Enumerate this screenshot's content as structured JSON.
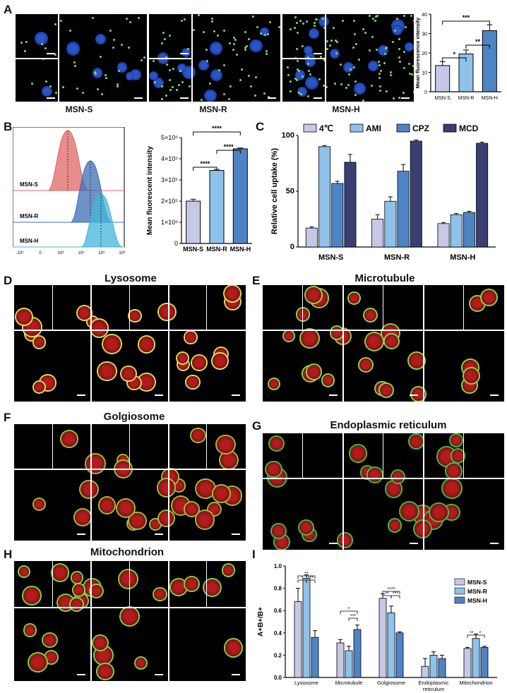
{
  "labels": {
    "A": "A",
    "B": "B",
    "C": "C",
    "D": "D",
    "E": "E",
    "F": "F",
    "G": "G",
    "H": "H",
    "I": "I"
  },
  "panelA": {
    "captions": [
      "MSN-S",
      "MSN-R",
      "MSN-H"
    ],
    "chart": {
      "type": "bar",
      "ylabel": "Mean fluorescence intensity",
      "categories": [
        "MSN-S",
        "MSN-R",
        "MSN-H"
      ],
      "values": [
        13.5,
        19.5,
        31.5
      ],
      "errors": [
        2,
        2,
        3
      ],
      "ylim": [
        0,
        40
      ],
      "yticks": [
        "0",
        "10",
        "20",
        "30",
        "40"
      ],
      "colors": [
        "#c6c8e6",
        "#8fc2ea",
        "#4f84c4"
      ],
      "significance": [
        "*",
        "**",
        "***"
      ]
    }
  },
  "panelB": {
    "histogram": {
      "labels": [
        "MSN-S",
        "MSN-R",
        "MSN-H"
      ],
      "xticks": [
        "-10³",
        "0",
        "10³",
        "10⁴",
        "10⁵",
        "10⁶"
      ],
      "colors": [
        "#e06666",
        "#3c6fb3",
        "#43b6d9"
      ]
    },
    "chart": {
      "type": "bar",
      "ylabel": "Mean fluorescent intensity",
      "categories": [
        "MSN-S",
        "MSN-R",
        "MSN-H"
      ],
      "values": [
        200000,
        345000,
        447000
      ],
      "errors": [
        9000,
        5000,
        4000
      ],
      "ylim": [
        0,
        500000
      ],
      "yticks": [
        "0",
        "1×10⁵",
        "2×10⁵",
        "3×10⁵",
        "4×10⁵",
        "5×10⁵"
      ],
      "colors": [
        "#c6c8e6",
        "#8fc2ea",
        "#4f84c4"
      ],
      "significance": [
        "****",
        "****",
        "****"
      ]
    }
  },
  "chart_data": [
    {
      "type": "bar",
      "panel": "C",
      "ylabel": "Relative cell uptake (%)",
      "categories": [
        "MSN-S",
        "MSN-R",
        "MSN-H"
      ],
      "ylim": [
        0,
        100
      ],
      "yticks": [
        "0",
        "50",
        "100"
      ],
      "series": [
        {
          "name": "4℃",
          "values": [
            17,
            25,
            21
          ],
          "errors": [
            1,
            4,
            1
          ],
          "color": "#c6c8e6"
        },
        {
          "name": "AMI",
          "values": [
            90,
            41,
            29
          ],
          "errors": [
            1,
            4,
            1
          ],
          "color": "#8fc2ea"
        },
        {
          "name": "CPZ",
          "values": [
            57,
            68,
            31
          ],
          "errors": [
            2,
            6,
            1
          ],
          "color": "#4f84c4"
        },
        {
          "name": "MCD",
          "values": [
            76,
            95,
            93
          ],
          "errors": [
            7,
            1,
            1
          ],
          "color": "#3a3f72"
        }
      ]
    },
    {
      "type": "bar",
      "panel": "I",
      "ylabel": "A+B+/B+",
      "categories": [
        "Lysosome",
        "Microtubule",
        "Golgiosome",
        "Endoplasmic reticulum",
        "Mitochondrion"
      ],
      "ylim": [
        0,
        1.0
      ],
      "yticks": [
        "0.0",
        "0.2",
        "0.4",
        "0.6",
        "0.8",
        "1.0"
      ],
      "series": [
        {
          "name": "MSN-S",
          "values": [
            0.68,
            0.31,
            0.71,
            0.1,
            0.26
          ],
          "errors": [
            0.12,
            0.03,
            0.04,
            0.07,
            0.01
          ],
          "color": "#c6c8e6"
        },
        {
          "name": "MSN-R",
          "values": [
            0.89,
            0.24,
            0.58,
            0.2,
            0.35
          ],
          "errors": [
            0.03,
            0.04,
            0.06,
            0.03,
            0.04
          ],
          "color": "#8fc2ea"
        },
        {
          "name": "MSN-H",
          "values": [
            0.36,
            0.43,
            0.4,
            0.17,
            0.27
          ],
          "errors": [
            0.06,
            0.04,
            0.01,
            0.03,
            0.01
          ],
          "color": "#4f84c4"
        }
      ],
      "significance": [
        "**",
        "*",
        "***",
        "*",
        "***",
        "****",
        "**",
        "***",
        "**",
        "*"
      ]
    }
  ],
  "titles": {
    "D": "Lysosome",
    "E": "Microtubule",
    "F": "Golgiosome",
    "G": "Endoplasmic reticulum",
    "H": "Mitochondrion"
  }
}
